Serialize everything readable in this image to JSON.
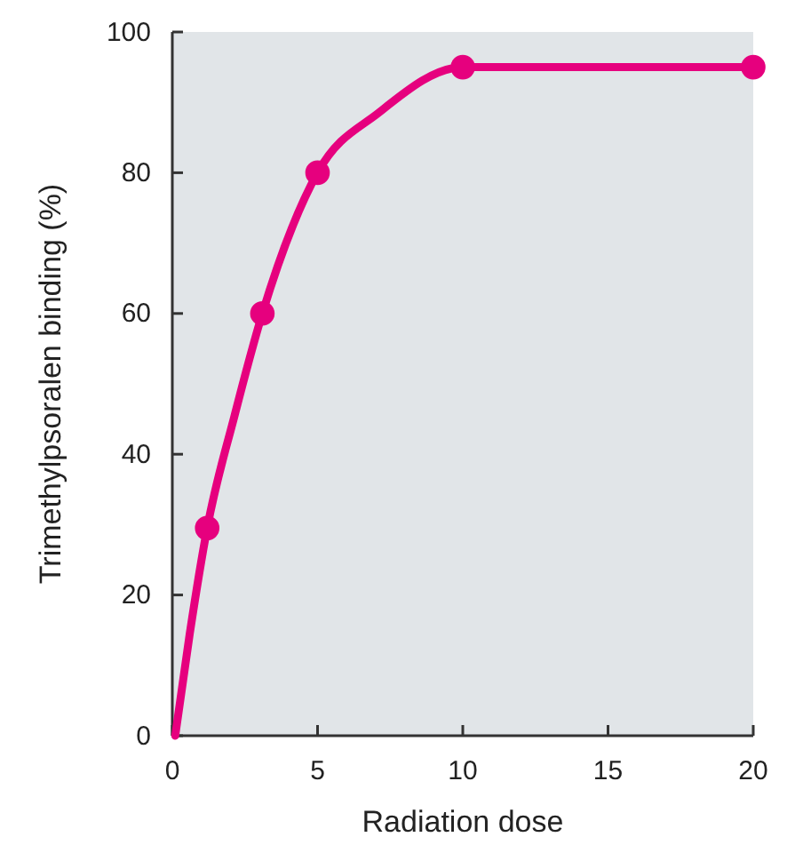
{
  "chart_data": {
    "type": "line",
    "xlabel": "Radiation dose",
    "ylabel": "Trimethylpsoralen binding (%)",
    "xlim": [
      0,
      20
    ],
    "xticks": [
      0,
      5,
      10,
      15,
      20
    ],
    "ylim": [
      0,
      100
    ],
    "yticks": [
      0,
      20,
      40,
      60,
      80,
      100
    ],
    "series": [
      {
        "color": "#e6007e",
        "marker": "none",
        "x": [
          0.1,
          0.6,
          1.2,
          2.15,
          3.1,
          5,
          7.1,
          10,
          20
        ],
        "values": [
          0,
          14.5,
          29.5,
          45.6,
          60,
          80,
          88.5,
          95,
          95
        ]
      },
      {
        "type": "scatter",
        "color": "#e6007e",
        "marker": "circle",
        "x": [
          1.2,
          3.1,
          5,
          10,
          20
        ],
        "values": [
          29.5,
          60,
          80,
          95,
          95
        ]
      }
    ]
  }
}
